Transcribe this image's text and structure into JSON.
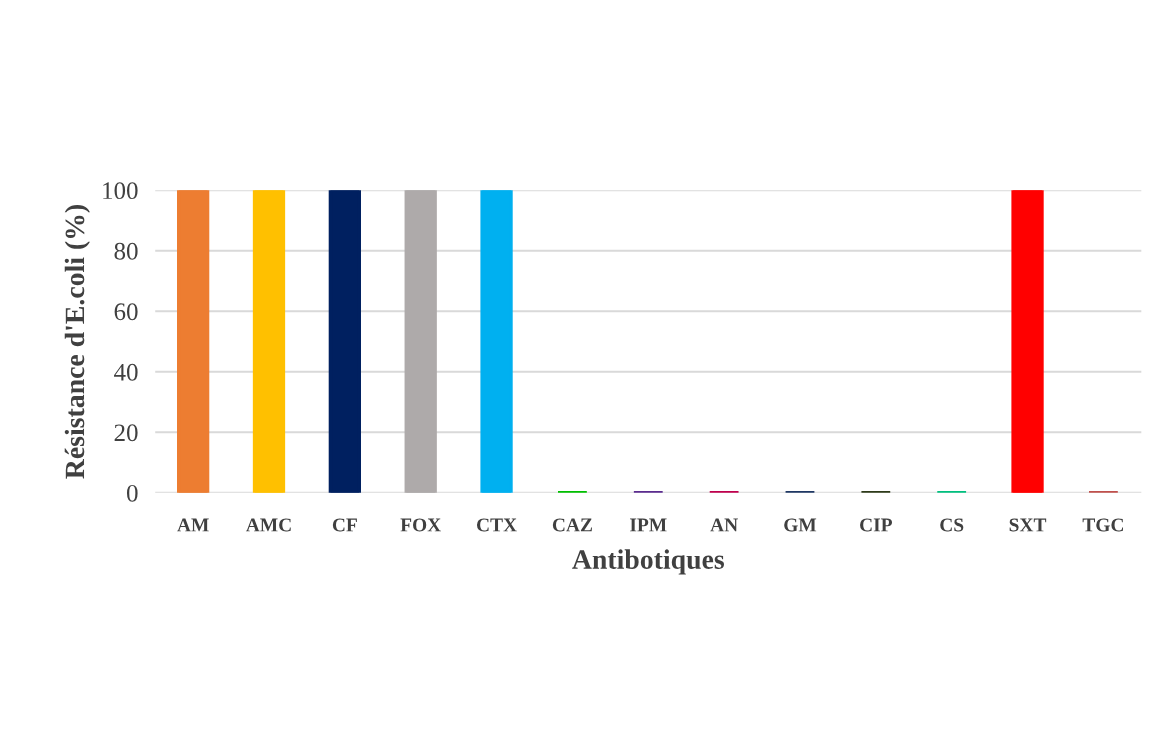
{
  "chart_data": {
    "type": "bar",
    "xlabel": "Antibotiques",
    "ylabel": "Résistance d'E.coli (%)",
    "categories": [
      "AM",
      "AMC",
      "CF",
      "FOX",
      "CTX",
      "CAZ",
      "IPM",
      "AN",
      "GM",
      "CIP",
      "CS",
      "SXT",
      "TGC"
    ],
    "values": [
      100,
      100,
      100,
      100,
      100,
      0,
      0,
      0,
      0,
      0,
      0,
      100,
      0
    ],
    "colors": [
      "#ed7d31",
      "#ffc000",
      "#002060",
      "#aeaaaa",
      "#00b0f0",
      "#00c000",
      "#5b2c8f",
      "#c0004e",
      "#1f3864",
      "#2e3b1a",
      "#00c07f",
      "#ff0000",
      "#c0504d"
    ],
    "ylim": [
      0,
      100
    ],
    "yticks": [
      0,
      20,
      40,
      60,
      80,
      100
    ],
    "grid": "y",
    "legend": false
  }
}
